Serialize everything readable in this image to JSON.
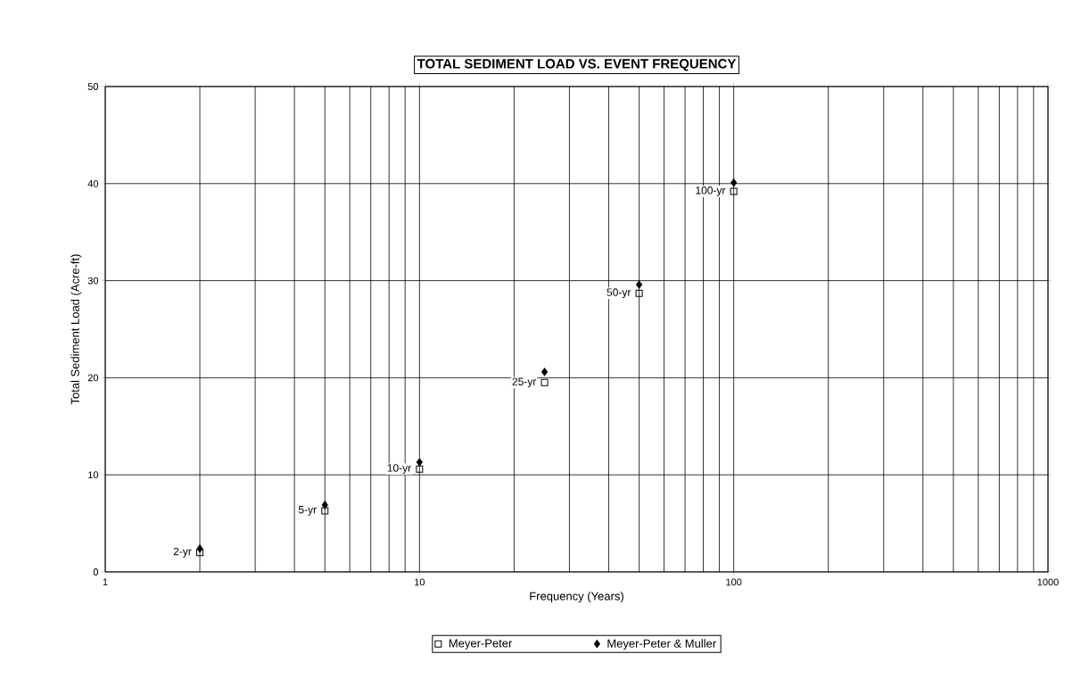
{
  "chart_data": {
    "type": "scatter",
    "title": "TOTAL SEDIMENT LOAD VS. EVENT FREQUENCY",
    "xlabel": "Frequency (Years)",
    "ylabel": "Total Sediment Load (Acre-ft)",
    "x": [
      2,
      5,
      10,
      25,
      50,
      100
    ],
    "series": [
      {
        "name": "Meyer-Peter",
        "color": "#000000",
        "marker": "square",
        "values": [
          2.0,
          6.3,
          10.6,
          19.5,
          28.7,
          39.2
        ]
      },
      {
        "name": "Meyer-Peter & Muller",
        "color": "#000000",
        "marker": "diamond",
        "values": [
          2.4,
          6.9,
          11.3,
          20.6,
          29.6,
          40.1
        ]
      }
    ],
    "annotations": [
      {
        "text": "2-yr",
        "x": 2,
        "y": 2.0
      },
      {
        "text": "5-yr",
        "x": 5,
        "y": 6.3
      },
      {
        "text": "10-yr",
        "x": 10,
        "y": 10.6
      },
      {
        "text": "25-yr",
        "x": 25,
        "y": 19.5
      },
      {
        "text": "50-yr",
        "x": 50,
        "y": 28.7
      },
      {
        "text": "100-yr",
        "x": 100,
        "y": 39.2
      }
    ],
    "log": "x",
    "xlim": [
      1,
      1000
    ],
    "xticks": [
      1,
      10,
      100,
      1000
    ],
    "ylim": [
      0,
      50
    ],
    "yticks": [
      0,
      10,
      20,
      30,
      40,
      50
    ],
    "grid": true,
    "legend": "bottom"
  }
}
